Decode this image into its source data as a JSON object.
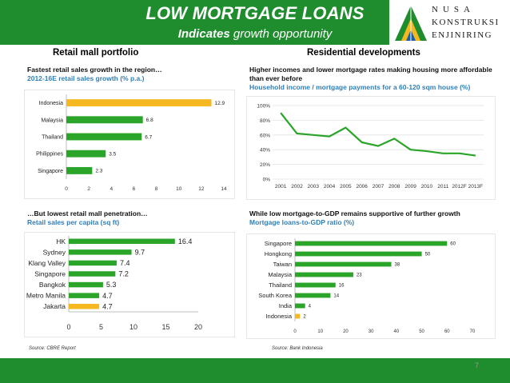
{
  "header": {
    "title": "LOW MORTGAGE LOANS",
    "subtitle_a": "Indicates",
    "subtitle_b": "growth opportunity"
  },
  "logo": {
    "line1": "NUSA",
    "line2": "KONSTRUKSI",
    "line3": "ENJINIRING",
    "icon": "triangle-logo-icon"
  },
  "colors": {
    "header_bg": "#1f8c2e",
    "bar": "#2aa52a",
    "highlight": "#f5b820",
    "line": "#2aa52a",
    "caption_blue": "#2e7fb8"
  },
  "left_section_title": "Retail mall portfolio",
  "right_section_title": "Residential developments",
  "source_left": "Source: CBRE Report",
  "source_right": "Source: Bank Indonesia",
  "page_number": "7",
  "chart_data": [
    {
      "type": "bar",
      "orientation": "horizontal",
      "caption": "Fastest retail sales growth in the region…",
      "subcaption": "2012-16E retail sales growth (% p.a.)",
      "categories": [
        "Indonesia",
        "Malaysia",
        "Thailand",
        "Philippines",
        "Singapore"
      ],
      "values": [
        12.9,
        6.8,
        6.7,
        3.5,
        2.3
      ],
      "value_labels": [
        "12.9",
        "6.8",
        "6.7",
        "3.5",
        "2.3"
      ],
      "highlight": [
        "Indonesia"
      ],
      "xlim": [
        0,
        14
      ],
      "xticks": [
        0,
        2,
        4,
        6,
        8,
        10,
        12,
        14
      ]
    },
    {
      "type": "line",
      "caption": "Higher incomes and lower mortgage rates making housing more affordable than ever before",
      "subcaption": "Household income / mortgage payments for a 60-120 sqm house (%)",
      "x": [
        "2001",
        "2002",
        "2003",
        "2004",
        "2005",
        "2006",
        "2007",
        "2008",
        "2009",
        "2010",
        "2011",
        "2012F",
        "2013F"
      ],
      "y": [
        90,
        62,
        60,
        58,
        70,
        50,
        45,
        55,
        40,
        38,
        35,
        35,
        32
      ],
      "ylim": [
        0,
        100
      ],
      "yticks": [
        "0%",
        "20%",
        "40%",
        "60%",
        "80%",
        "100%"
      ]
    },
    {
      "type": "bar",
      "orientation": "horizontal",
      "caption": "…But lowest retail mall penetration…",
      "subcaption": "Retail sales per capita (sq ft)",
      "categories": [
        "HK",
        "Sydney",
        "Klang Valley",
        "Singapore",
        "Bangkok",
        "Metro Manila",
        "Jakarta"
      ],
      "values": [
        16.4,
        9.7,
        7.4,
        7.2,
        5.3,
        4.7,
        4.7
      ],
      "value_labels": [
        "16.4",
        "9.7",
        "7.4",
        "7.2",
        "5.3",
        "4.7",
        "4.7"
      ],
      "highlight": [
        "Jakarta"
      ],
      "xlim": [
        0,
        20
      ],
      "xticks": [
        0,
        5,
        10,
        15,
        20
      ]
    },
    {
      "type": "bar",
      "orientation": "horizontal",
      "caption": "While low mortgage-to-GDP remains supportive of further growth",
      "subcaption": "Mortgage loans-to-GDP ratio (%)",
      "categories": [
        "Singapore",
        "Hongkong",
        "Taiwan",
        "Malaysia",
        "Thailand",
        "South Korea",
        "India",
        "Indonesia"
      ],
      "values": [
        60,
        50,
        38,
        23,
        16,
        14,
        4,
        2
      ],
      "value_labels": [
        "60",
        "50",
        "38",
        "23",
        "16",
        "14",
        "4",
        "2"
      ],
      "highlight": [
        "Indonesia"
      ],
      "xlim": [
        0,
        70
      ],
      "xticks": [
        0,
        10,
        20,
        30,
        40,
        50,
        60,
        70
      ]
    }
  ]
}
